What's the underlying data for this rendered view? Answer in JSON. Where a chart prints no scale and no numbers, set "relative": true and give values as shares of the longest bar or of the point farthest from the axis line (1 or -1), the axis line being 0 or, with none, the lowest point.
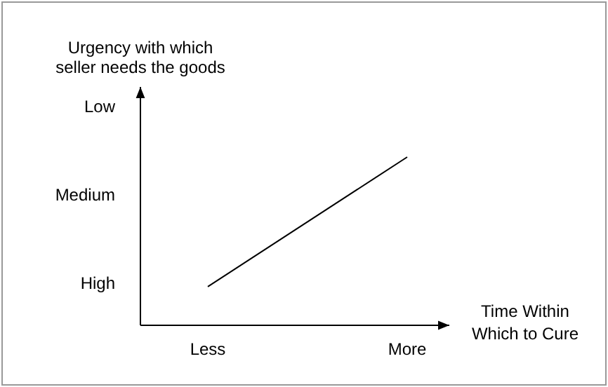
{
  "chart_data": {
    "type": "line",
    "xlabel": "Time Within Which to Cure",
    "ylabel": "Urgency with which seller needs the goods",
    "categories": [
      "Less",
      "More"
    ],
    "relative": true,
    "series": [
      {
        "color": "#000000",
        "values": [
          0.23,
          1
        ]
      }
    ],
    "annotations": [
      "Low",
      "Medium",
      "High"
    ],
    "grid": false,
    "marker": "none",
    "line_style": "solid"
  }
}
